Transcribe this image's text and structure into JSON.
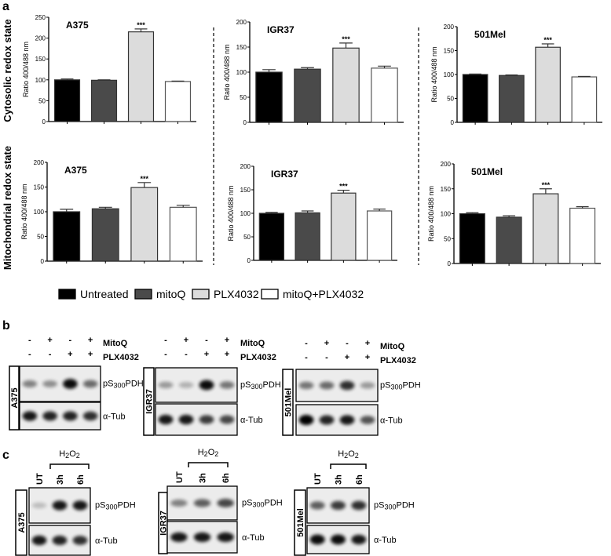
{
  "panel_labels": {
    "a": "a",
    "b": "b",
    "c": "c"
  },
  "row_titles": [
    "Cytosolic redox state",
    "Mitochondrial redox state"
  ],
  "colors": {
    "Untreated": "#000000",
    "mitoQ": "#4a4a4a",
    "PLX4032": "#dcdcdc",
    "mitoQ+PLX4032": "#ffffff"
  },
  "legend": [
    "Untreated",
    "mitoQ",
    "PLX4032",
    "mitoQ+PLX4032"
  ],
  "chart_data": [
    {
      "type": "bar",
      "title": "A375",
      "row": "Cytosolic redox state",
      "ylabel": "Ratio 400/488 nm",
      "ylim": [
        0,
        250
      ],
      "yticks": [
        0,
        50,
        100,
        150,
        200,
        250
      ],
      "categories": [
        "Untreated",
        "mitoQ",
        "PLX4032",
        "mitoQ+PLX4032"
      ],
      "values": [
        100,
        99,
        215,
        96
      ],
      "errors": [
        2,
        1,
        7,
        1
      ],
      "significance": [
        "",
        "",
        "***",
        ""
      ]
    },
    {
      "type": "bar",
      "title": "IGR37",
      "row": "Cytosolic redox state",
      "ylabel": "Ratio 400/488 nm",
      "ylim": [
        0,
        200
      ],
      "yticks": [
        0,
        50,
        100,
        150,
        200
      ],
      "categories": [
        "Untreated",
        "mitoQ",
        "PLX4032",
        "mitoQ+PLX4032"
      ],
      "values": [
        100,
        106,
        148,
        108
      ],
      "errors": [
        5,
        3,
        10,
        4
      ],
      "significance": [
        "",
        "",
        "***",
        ""
      ]
    },
    {
      "type": "bar",
      "title": "501Mel",
      "row": "Cytosolic redox state",
      "ylabel": "Ratio 400/488 nm",
      "ylim": [
        0,
        200
      ],
      "yticks": [
        0,
        50,
        100,
        150,
        200
      ],
      "categories": [
        "Untreated",
        "mitoQ",
        "PLX4032",
        "mitoQ+PLX4032"
      ],
      "values": [
        100,
        98,
        157,
        95
      ],
      "errors": [
        1,
        1,
        7,
        1
      ],
      "significance": [
        "",
        "",
        "***",
        ""
      ]
    },
    {
      "type": "bar",
      "title": "A375",
      "row": "Mitochondrial redox state",
      "ylabel": "Ratio 400/488 nm",
      "ylim": [
        0,
        200
      ],
      "yticks": [
        0,
        50,
        100,
        150,
        200
      ],
      "categories": [
        "Untreated",
        "mitoQ",
        "PLX4032",
        "mitoQ+PLX4032"
      ],
      "values": [
        100,
        106,
        149,
        109
      ],
      "errors": [
        5,
        3,
        10,
        4
      ],
      "significance": [
        "",
        "",
        "***",
        ""
      ]
    },
    {
      "type": "bar",
      "title": "IGR37",
      "row": "Mitochondrial redox state",
      "ylabel": "Ratio 400/488 nm",
      "ylim": [
        0,
        200
      ],
      "yticks": [
        0,
        50,
        100,
        150,
        200
      ],
      "categories": [
        "Untreated",
        "mitoQ",
        "PLX4032",
        "mitoQ+PLX4032"
      ],
      "values": [
        100,
        101,
        143,
        105
      ],
      "errors": [
        2,
        4,
        6,
        4
      ],
      "significance": [
        "",
        "",
        "***",
        ""
      ]
    },
    {
      "type": "bar",
      "title": "501Mel",
      "row": "Mitochondrial redox state",
      "ylabel": "Ratio 400/488 nm",
      "ylim": [
        0,
        200
      ],
      "yticks": [
        0,
        50,
        100,
        150,
        200
      ],
      "categories": [
        "Untreated",
        "mitoQ",
        "PLX4032",
        "mitoQ+PLX4032"
      ],
      "values": [
        100,
        93,
        140,
        111
      ],
      "errors": [
        2,
        3,
        10,
        3
      ],
      "significance": [
        "",
        "",
        "***",
        ""
      ]
    }
  ],
  "blots_b": {
    "treatments": [
      {
        "name": "MitoQ",
        "signs": [
          "-",
          "+",
          "-",
          "+"
        ]
      },
      {
        "name": "PLX4032",
        "signs": [
          "-",
          "-",
          "+",
          "+"
        ]
      }
    ],
    "proteins": [
      "pS300PDH",
      "α-Tub"
    ],
    "panels": [
      {
        "cell_line": "A375",
        "intensity": {
          "pS300PDH": [
            0.45,
            0.4,
            0.95,
            0.55
          ],
          "α-Tub": [
            0.9,
            0.85,
            0.85,
            0.8
          ]
        }
      },
      {
        "cell_line": "IGR37",
        "intensity": {
          "pS300PDH": [
            0.35,
            0.25,
            0.95,
            0.5
          ],
          "α-Tub": [
            0.9,
            0.9,
            0.75,
            0.7
          ]
        }
      },
      {
        "cell_line": "501Mel",
        "intensity": {
          "pS300PDH": [
            0.5,
            0.55,
            0.8,
            0.35
          ],
          "α-Tub": [
            1.0,
            0.85,
            0.9,
            0.65
          ]
        }
      }
    ]
  },
  "blots_c": {
    "treatment": "H2O2",
    "lanes": [
      "UT",
      "3h",
      "6h"
    ],
    "proteins": [
      "pS300PDH",
      "α-Tub"
    ],
    "panels": [
      {
        "cell_line": "A375",
        "intensity": {
          "pS300PDH": [
            0.2,
            0.9,
            0.9
          ],
          "α-Tub": [
            0.9,
            0.85,
            0.8
          ]
        }
      },
      {
        "cell_line": "IGR37",
        "intensity": {
          "pS300PDH": [
            0.45,
            0.6,
            0.7
          ],
          "α-Tub": [
            0.9,
            0.9,
            0.9
          ]
        }
      },
      {
        "cell_line": "501Mel",
        "intensity": {
          "pS300PDH": [
            0.6,
            0.75,
            0.8
          ],
          "α-Tub": [
            0.95,
            0.95,
            0.9
          ]
        }
      }
    ]
  }
}
